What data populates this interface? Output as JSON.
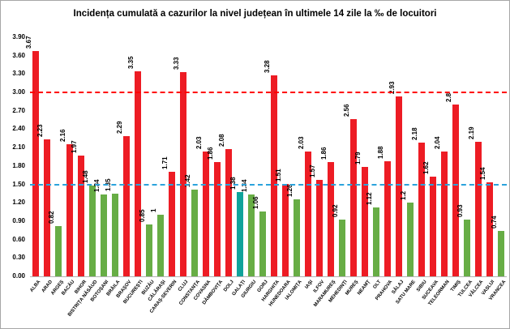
{
  "chart_data": {
    "type": "bar",
    "title": "Incidența cumulată a cazurilor la nivel județean în ultimele 14 zile la ‰ de locuitori",
    "xlabel": "",
    "ylabel": "",
    "ylim": [
      0,
      3.9
    ],
    "grid": false,
    "legend": "none",
    "yticks": [
      "0.00",
      "0.30",
      "0.60",
      "0.90",
      "1.20",
      "1.50",
      "1.80",
      "2.10",
      "2.40",
      "2.70",
      "3.00",
      "3.30",
      "3.60",
      "3.90"
    ],
    "palette": {
      "red": "#ed1c24",
      "green": "#67ad45",
      "teal": "#10a39b"
    },
    "thresholds": [
      {
        "value": 3.0,
        "color": "#ff0000",
        "style": "dashed"
      },
      {
        "value": 1.5,
        "color": "#2ba3dc",
        "style": "dashed"
      }
    ],
    "bars": [
      {
        "label": "ALBA",
        "value": 3.67,
        "color": "red"
      },
      {
        "label": "ARAD",
        "value": 2.23,
        "color": "red"
      },
      {
        "label": "ARGEȘ",
        "value": 0.82,
        "color": "green"
      },
      {
        "label": "BACĂU",
        "value": 2.16,
        "color": "red"
      },
      {
        "label": "BIHOR",
        "value": 1.97,
        "color": "red"
      },
      {
        "label": "BISTRIȚA NĂSĂUD",
        "value": 1.48,
        "color": "green"
      },
      {
        "label": "BOTOȘANI",
        "value": 1.34,
        "color": "green"
      },
      {
        "label": "BRĂILA",
        "value": 1.35,
        "color": "green"
      },
      {
        "label": "BRAȘOV",
        "value": 2.29,
        "color": "red"
      },
      {
        "label": "BUCUREȘTI",
        "value": 3.35,
        "color": "red"
      },
      {
        "label": "BUZĂU",
        "value": 0.85,
        "color": "green"
      },
      {
        "label": "CĂLĂRAȘI",
        "value": 1,
        "color": "green"
      },
      {
        "label": "CARAȘ-SEVERIN",
        "value": 1.71,
        "color": "red"
      },
      {
        "label": "CLUJ",
        "value": 3.33,
        "color": "red"
      },
      {
        "label": "CONSTANȚA",
        "value": 1.42,
        "color": "green"
      },
      {
        "label": "COVASNA",
        "value": 2.03,
        "color": "red"
      },
      {
        "label": "DÂMBOVIȚA",
        "value": 1.86,
        "color": "red"
      },
      {
        "label": "DOLJ",
        "value": 2.08,
        "color": "red"
      },
      {
        "label": "GALAȚI",
        "value": 1.38,
        "color": "teal"
      },
      {
        "label": "GIURGIU",
        "value": 1.34,
        "color": "green"
      },
      {
        "label": "GORJ",
        "value": 1.06,
        "color": "green"
      },
      {
        "label": "HARGHITA",
        "value": 3.28,
        "color": "red"
      },
      {
        "label": "HUNEDOARA",
        "value": 1.51,
        "color": "red"
      },
      {
        "label": "IALOMIȚA",
        "value": 1.26,
        "color": "green"
      },
      {
        "label": "IAȘI",
        "value": 2.03,
        "color": "red"
      },
      {
        "label": "ILFOV",
        "value": 1.57,
        "color": "red"
      },
      {
        "label": "MARAMUREȘ",
        "value": 1.86,
        "color": "red"
      },
      {
        "label": "MEHEDINȚI",
        "value": 0.92,
        "color": "green"
      },
      {
        "label": "MUREȘ",
        "value": 2.56,
        "color": "red"
      },
      {
        "label": "NEAMȚ",
        "value": 1.79,
        "color": "red"
      },
      {
        "label": "OLT",
        "value": 1.12,
        "color": "green"
      },
      {
        "label": "PRAHOVA",
        "value": 1.88,
        "color": "red"
      },
      {
        "label": "SĂLAJ",
        "value": 2.93,
        "color": "red"
      },
      {
        "label": "SATU MARE",
        "value": 1.2,
        "color": "green"
      },
      {
        "label": "SIBIU",
        "value": 2.18,
        "color": "red"
      },
      {
        "label": "SUCEAVA",
        "value": 1.62,
        "color": "red"
      },
      {
        "label": "TELEORMAN",
        "value": 2.04,
        "color": "red"
      },
      {
        "label": "TIMIȘ",
        "value": 2.8,
        "color": "red"
      },
      {
        "label": "TULCEA",
        "value": 0.93,
        "color": "green"
      },
      {
        "label": "VÂLCEA",
        "value": 2.19,
        "color": "red"
      },
      {
        "label": "VASLUI",
        "value": 1.54,
        "color": "red"
      },
      {
        "label": "VRANCEA",
        "value": 0.74,
        "color": "green"
      }
    ]
  }
}
